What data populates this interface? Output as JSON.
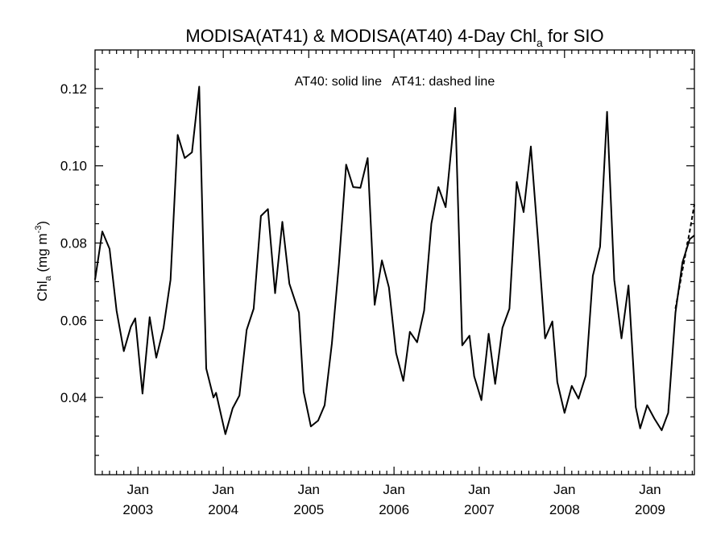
{
  "chart_data": {
    "type": "line",
    "title": "MODISA(AT41) & MODISA(AT40) 4-Day Chl",
    "title_sub": "a",
    "title_suffix": " for SIO",
    "annotation": "AT40: solid line   AT41: dashed line",
    "ylabel": "Chl",
    "ylabel_sub": "a",
    "ylabel_unit": " (mg m",
    "ylabel_unit_sup": "-3",
    "ylabel_close": ")",
    "ylim": [
      0.02,
      0.13
    ],
    "xlim": [
      "2002-07-01",
      "2009-07-10"
    ],
    "y_ticks": [
      0.04,
      0.06,
      0.08,
      0.1,
      0.12
    ],
    "y_tick_labels": [
      "0.04",
      "0.06",
      "0.08",
      "0.10",
      "0.12"
    ],
    "x_ticks": [
      {
        "date": "2003-01-01",
        "month": "Jan",
        "year": "2003"
      },
      {
        "date": "2004-01-01",
        "month": "Jan",
        "year": "2004"
      },
      {
        "date": "2005-01-01",
        "month": "Jan",
        "year": "2005"
      },
      {
        "date": "2006-01-01",
        "month": "Jan",
        "year": "2006"
      },
      {
        "date": "2007-01-01",
        "month": "Jan",
        "year": "2007"
      },
      {
        "date": "2008-01-01",
        "month": "Jan",
        "year": "2008"
      },
      {
        "date": "2009-01-01",
        "month": "Jan",
        "year": "2009"
      }
    ],
    "grid": false,
    "series": [
      {
        "name": "AT40",
        "style": "solid",
        "color": "#000000",
        "points": [
          [
            "2002-07-01",
            0.0705
          ],
          [
            "2002-08-01",
            0.083
          ],
          [
            "2002-09-01",
            0.0785
          ],
          [
            "2002-10-01",
            0.0625
          ],
          [
            "2002-11-01",
            0.052
          ],
          [
            "2002-12-01",
            0.0583
          ],
          [
            "2002-12-20",
            0.0605
          ],
          [
            "2003-01-20",
            0.041
          ],
          [
            "2003-02-20",
            0.0608
          ],
          [
            "2003-03-20",
            0.0503
          ],
          [
            "2003-04-20",
            0.058
          ],
          [
            "2003-05-20",
            0.0705
          ],
          [
            "2003-06-20",
            0.108
          ],
          [
            "2003-07-20",
            0.102
          ],
          [
            "2003-08-20",
            0.1035
          ],
          [
            "2003-09-20",
            0.1205
          ],
          [
            "2003-10-20",
            0.0475
          ],
          [
            "2003-11-20",
            0.04
          ],
          [
            "2003-12-01",
            0.0412
          ],
          [
            "2004-01-10",
            0.0305
          ],
          [
            "2004-02-10",
            0.0372
          ],
          [
            "2004-03-10",
            0.0405
          ],
          [
            "2004-04-10",
            0.0575
          ],
          [
            "2004-05-10",
            0.063
          ],
          [
            "2004-06-10",
            0.087
          ],
          [
            "2004-07-10",
            0.0888
          ],
          [
            "2004-08-10",
            0.067
          ],
          [
            "2004-09-10",
            0.0855
          ],
          [
            "2004-10-10",
            0.0695
          ],
          [
            "2004-11-20",
            0.062
          ],
          [
            "2004-12-10",
            0.0415
          ],
          [
            "2005-01-10",
            0.0325
          ],
          [
            "2005-02-10",
            0.034
          ],
          [
            "2005-03-10",
            0.038
          ],
          [
            "2005-04-10",
            0.054
          ],
          [
            "2005-05-10",
            0.0745
          ],
          [
            "2005-06-10",
            0.1003
          ],
          [
            "2005-07-10",
            0.0945
          ],
          [
            "2005-08-10",
            0.0943
          ],
          [
            "2005-09-10",
            0.102
          ],
          [
            "2005-10-10",
            0.064
          ],
          [
            "2005-11-10",
            0.0755
          ],
          [
            "2005-12-10",
            0.0685
          ],
          [
            "2006-01-10",
            0.0515
          ],
          [
            "2006-02-10",
            0.0443
          ],
          [
            "2006-03-10",
            0.057
          ],
          [
            "2006-04-10",
            0.0543
          ],
          [
            "2006-05-10",
            0.0625
          ],
          [
            "2006-06-10",
            0.085
          ],
          [
            "2006-07-10",
            0.0945
          ],
          [
            "2006-08-10",
            0.0893
          ],
          [
            "2006-09-20",
            0.115
          ],
          [
            "2006-10-20",
            0.0535
          ],
          [
            "2006-11-20",
            0.056
          ],
          [
            "2006-12-10",
            0.0455
          ],
          [
            "2007-01-10",
            0.0393
          ],
          [
            "2007-02-10",
            0.0565
          ],
          [
            "2007-03-10",
            0.0435
          ],
          [
            "2007-04-10",
            0.058
          ],
          [
            "2007-05-10",
            0.063
          ],
          [
            "2007-06-10",
            0.0958
          ],
          [
            "2007-07-10",
            0.088
          ],
          [
            "2007-08-10",
            0.105
          ],
          [
            "2007-09-10",
            0.0805
          ],
          [
            "2007-10-10",
            0.0553
          ],
          [
            "2007-11-10",
            0.0597
          ],
          [
            "2007-12-01",
            0.044
          ],
          [
            "2008-01-01",
            0.036
          ],
          [
            "2008-02-01",
            0.043
          ],
          [
            "2008-03-01",
            0.0397
          ],
          [
            "2008-04-01",
            0.0457
          ],
          [
            "2008-05-01",
            0.0715
          ],
          [
            "2008-06-01",
            0.079
          ],
          [
            "2008-07-01",
            0.114
          ],
          [
            "2008-08-01",
            0.0705
          ],
          [
            "2008-09-01",
            0.0553
          ],
          [
            "2008-10-01",
            0.069
          ],
          [
            "2008-11-01",
            0.0375
          ],
          [
            "2008-11-20",
            0.032
          ],
          [
            "2008-12-20",
            0.038
          ],
          [
            "2009-01-20",
            0.0345
          ],
          [
            "2009-02-20",
            0.0315
          ],
          [
            "2009-03-20",
            0.036
          ],
          [
            "2009-04-20",
            0.062
          ],
          [
            "2009-05-20",
            0.075
          ],
          [
            "2009-06-20",
            0.081
          ],
          [
            "2009-07-10",
            0.082
          ]
        ]
      },
      {
        "name": "AT41",
        "style": "dashed",
        "color": "#000000",
        "points": [
          [
            "2009-04-20",
            0.063
          ],
          [
            "2009-05-20",
            0.073
          ],
          [
            "2009-06-20",
            0.083
          ],
          [
            "2009-07-10",
            0.09
          ]
        ]
      }
    ]
  }
}
